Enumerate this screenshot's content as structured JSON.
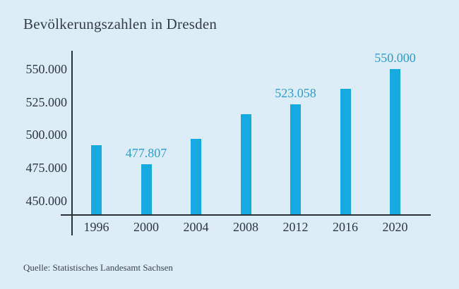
{
  "title": "Bevölkerungszahlen in Dresden",
  "source": "Quelle: Statistisches Landesamt Sachsen",
  "colors": {
    "background": "#dcedf8",
    "bar": "#15abe2",
    "bar_value_label_text": "#2e9cd4",
    "axis_line": "#2b3237",
    "tick_text": "#2f383e",
    "title_text": "#333e46",
    "source_text": "#3c464c"
  },
  "chart_data": {
    "type": "bar",
    "title": "Bevölkerungszahlen in Dresden",
    "xlabel": "",
    "ylabel": "",
    "categories": [
      "1996",
      "2000",
      "2004",
      "2008",
      "2012",
      "2016",
      "2020"
    ],
    "values": [
      492000,
      477807,
      497000,
      516000,
      523058,
      535000,
      550000
    ],
    "bar_labels": [
      "",
      "477.807",
      "",
      "",
      "523.058",
      "",
      "550.000"
    ],
    "labeled_points": [
      {
        "category": "2000",
        "label": "477.807",
        "value": 477807
      },
      {
        "category": "2012",
        "label": "523.058",
        "value": 523058
      },
      {
        "category": "2020",
        "label": "550.000",
        "value": 550000
      }
    ],
    "y_ticks": [
      {
        "value": 550000,
        "label": "550.000"
      },
      {
        "value": 525000,
        "label": "525.000"
      },
      {
        "value": 500000,
        "label": "500.000"
      },
      {
        "value": 475000,
        "label": "475.000"
      },
      {
        "value": 450000,
        "label": "450.000"
      }
    ],
    "ylim": [
      439000,
      564000
    ],
    "grid": false,
    "legend": false,
    "note": "values without data labels are estimated from bar heights"
  }
}
